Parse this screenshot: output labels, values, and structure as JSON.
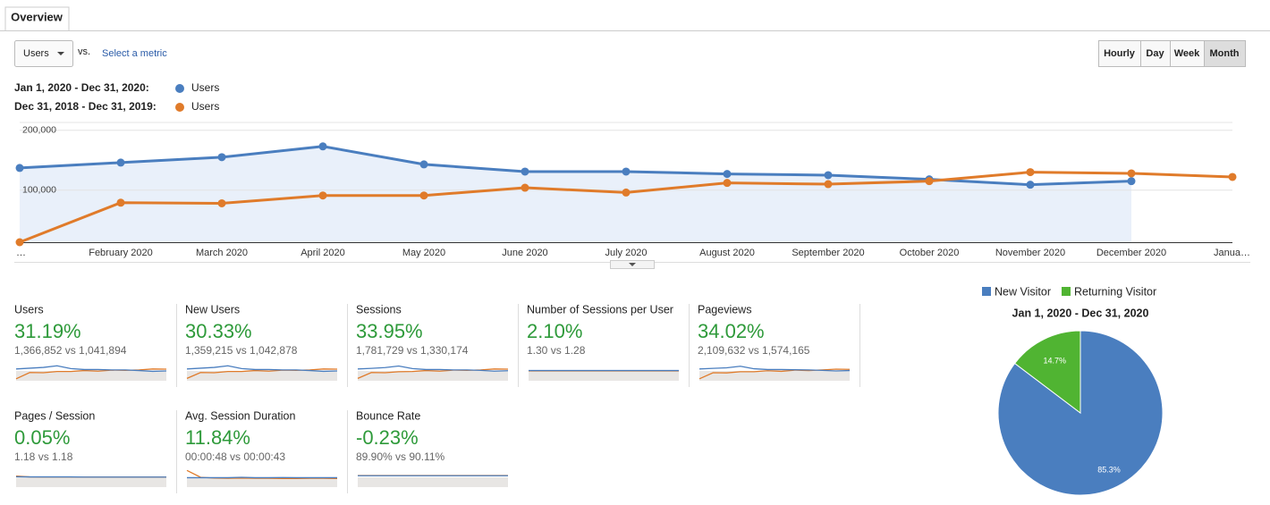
{
  "tab": "Overview",
  "metric_select": "Users",
  "vs": "vs.",
  "select_metric": "Select a metric",
  "granularity": [
    "Hourly",
    "Day",
    "Week",
    "Month"
  ],
  "active_granularity": "Month",
  "chart": {
    "type": "line",
    "categories": [
      "…",
      "February 2020",
      "March 2020",
      "April 2020",
      "May 2020",
      "June 2020",
      "July 2020",
      "August 2020",
      "September 2020",
      "October 2020",
      "November 2020",
      "December 2020",
      "Janua…"
    ],
    "ylim": [
      13000,
      213000
    ],
    "yticks": [
      {
        "value": 100000,
        "label": "100,000"
      },
      {
        "value": 200000,
        "label": "200,000"
      }
    ],
    "grid": true,
    "series": [
      {
        "name": "Users",
        "range": "Jan 1, 2020 - Dec 31, 2020:",
        "color": "#4a7ebf",
        "area": true,
        "values": [
          137000,
          146000,
          155000,
          173000,
          143000,
          131000,
          131000,
          127000,
          125000,
          118000,
          109000,
          115000,
          null
        ]
      },
      {
        "name": "Users",
        "range": "Dec 31, 2018 - Dec 31, 2019:",
        "color": "#e07b2a",
        "area": false,
        "values": [
          13000,
          79000,
          78000,
          91000,
          91000,
          104000,
          96000,
          112000,
          110000,
          115000,
          130000,
          128000,
          122000
        ]
      }
    ]
  },
  "metrics": [
    {
      "label": "Users",
      "change": "31.19%",
      "compare": "1,366,852 vs 1,041,894",
      "current": [
        60,
        64,
        68,
        76,
        62,
        57,
        57,
        55,
        55,
        52,
        48,
        50
      ],
      "previous": [
        10,
        42,
        41,
        47,
        47,
        52,
        49,
        54,
        53,
        55,
        60,
        59
      ]
    },
    {
      "label": "New Users",
      "change": "30.33%",
      "compare": "1,359,215 vs 1,042,878",
      "current": [
        60,
        64,
        68,
        76,
        62,
        57,
        57,
        55,
        55,
        52,
        48,
        50
      ],
      "previous": [
        12,
        42,
        41,
        47,
        47,
        52,
        49,
        54,
        53,
        55,
        60,
        59
      ]
    },
    {
      "label": "Sessions",
      "change": "33.95%",
      "compare": "1,781,729 vs 1,330,174",
      "current": [
        60,
        63,
        67,
        75,
        62,
        57,
        57,
        55,
        55,
        53,
        49,
        51
      ],
      "previous": [
        12,
        42,
        41,
        46,
        47,
        52,
        49,
        54,
        53,
        55,
        60,
        59
      ]
    },
    {
      "label": "Number of Sessions per User",
      "change": "2.10%",
      "compare": "1.30 vs 1.28",
      "current": [
        52,
        52,
        52,
        52,
        52,
        52,
        52,
        52,
        52,
        52,
        52,
        52
      ],
      "previous": [
        50,
        50,
        50,
        50,
        50,
        50,
        50,
        50,
        50,
        50,
        50,
        50
      ]
    },
    {
      "label": "Pageviews",
      "change": "34.02%",
      "compare": "2,109,632 vs 1,574,165",
      "current": [
        60,
        63,
        66,
        74,
        61,
        57,
        57,
        56,
        55,
        53,
        50,
        52
      ],
      "previous": [
        10,
        41,
        40,
        46,
        46,
        51,
        48,
        54,
        52,
        55,
        59,
        58
      ]
    },
    {
      "label": "Pages / Session",
      "change": "0.05%",
      "compare": "1.18 vs 1.18",
      "current": [
        53,
        52,
        52,
        52,
        52,
        51,
        51,
        51,
        51,
        51,
        51,
        51
      ],
      "previous": [
        56,
        52,
        51,
        51,
        51,
        51,
        51,
        51,
        51,
        51,
        51,
        51
      ]
    },
    {
      "label": "Avg. Session Duration",
      "change": "11.84%",
      "compare": "00:00:48 vs 00:00:43",
      "current": [
        48,
        48,
        48,
        48,
        50,
        48,
        48,
        49,
        48,
        48,
        48,
        48
      ],
      "previous": [
        85,
        50,
        46,
        45,
        46,
        45,
        45,
        44,
        44,
        45,
        45,
        44
      ]
    },
    {
      "label": "Bounce Rate",
      "change": "-0.23%",
      "compare": "89.90% vs 90.11%",
      "current": [
        58,
        58,
        58,
        58,
        58,
        58,
        58,
        58,
        58,
        58,
        58,
        58
      ],
      "previous": [
        59,
        59,
        59,
        59,
        59,
        59,
        59,
        59,
        59,
        59,
        59,
        59
      ]
    }
  ],
  "pie": {
    "type": "pie",
    "title": "Jan 1, 2020 - Dec 31, 2020",
    "labels": [
      "New Visitor",
      "Returning Visitor"
    ],
    "values": [
      85.3,
      14.7
    ],
    "value_labels": [
      "85.3%",
      "14.7%"
    ],
    "colors": [
      "#4a7ebf",
      "#50b432"
    ]
  }
}
